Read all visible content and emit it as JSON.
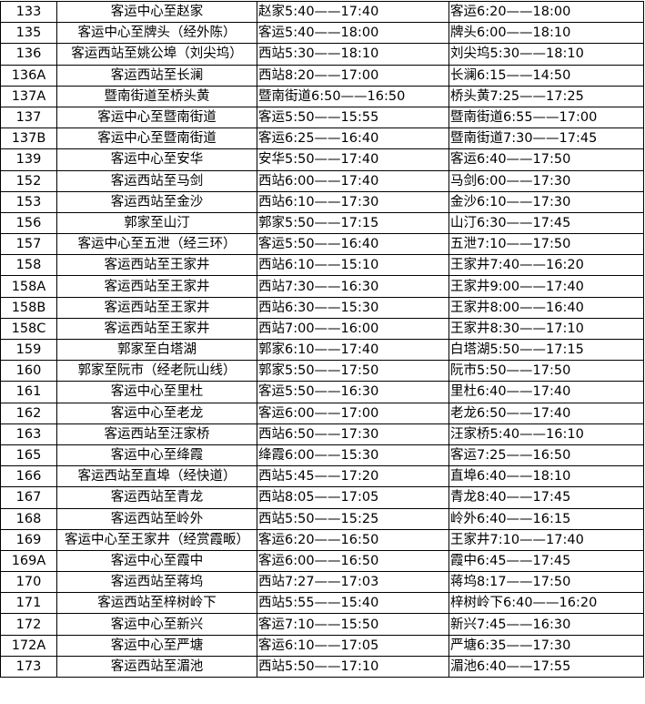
{
  "rows": [
    {
      "route": "133",
      "line": "客运中心至赵家",
      "first": "赵家5:40——17:40",
      "second": "客运6:20——18:00"
    },
    {
      "route": "135",
      "line": "客运中心至牌头（经外陈）",
      "first": "客运5:40——18:00",
      "second": "牌头6:00——18:10"
    },
    {
      "route": "136",
      "line": "客运西站至姚公埠（刘尖坞）",
      "first": "西站5:30——18:10",
      "second": "刘尖坞5:30——18:10"
    },
    {
      "route": "136A",
      "line": "客运西站至长澜",
      "first": "西站8:20——17:00",
      "second": "长澜6:15——14:50"
    },
    {
      "route": "137A",
      "line": "暨南街道至桥头黄",
      "first": "暨南街道6:50——16:50",
      "second": "桥头黄7:25——17:25"
    },
    {
      "route": "137",
      "line": "客运中心至暨南街道",
      "first": "客运5:50——15:55",
      "second": "暨南街道6:55——17:00"
    },
    {
      "route": "137B",
      "line": "客运中心至暨南街道",
      "first": "客运6:25——16:40",
      "second": "暨南街道7:30——17:45"
    },
    {
      "route": "139",
      "line": "客运中心至安华",
      "first": "安华5:50——17:40",
      "second": "客运6:40——17:50"
    },
    {
      "route": "152",
      "line": "客运西站至马剑",
      "first": "西站6:00——17:40",
      "second": "马剑6:00——17:30"
    },
    {
      "route": "153",
      "line": "客运西站至金沙",
      "first": "西站6:10——17:30",
      "second": "金沙6:10——17:30"
    },
    {
      "route": "156",
      "line": "郭家至山汀",
      "first": "郭家5:50——17:15",
      "second": "山汀6:30——17:45"
    },
    {
      "route": "157",
      "line": "客运中心至五泄（经三环）",
      "first": "客运5:50——16:40",
      "second": "五泄7:10——17:50"
    },
    {
      "route": "158",
      "line": "客运西站至王家井",
      "first": "西站6:10——15:10",
      "second": "王家井7:40——16:20"
    },
    {
      "route": "158A",
      "line": "客运西站至王家井",
      "first": "西站7:30——16:30",
      "second": "王家井9:00——17:40"
    },
    {
      "route": "158B",
      "line": "客运西站至王家井",
      "first": "西站6:30——15:30",
      "second": "王家井8:00——16:40"
    },
    {
      "route": "158C",
      "line": "客运西站至王家井",
      "first": "西站7:00——16:00",
      "second": "王家井8:30——17:10"
    },
    {
      "route": "159",
      "line": "郭家至白塔湖",
      "first": "郭家6:10——17:40",
      "second": "白塔湖5:50——17:15"
    },
    {
      "route": "160",
      "line": "郭家至阮市（经老阮山线）",
      "first": "郭家5:50——17:50",
      "second": "阮市5:50——17:50"
    },
    {
      "route": "161",
      "line": "客运中心至里杜",
      "first": "客运5:50——16:30",
      "second": "里杜6:40——17:40"
    },
    {
      "route": "162",
      "line": "客运中心至老龙",
      "first": "客运6:00——17:00",
      "second": "老龙6:50——17:40"
    },
    {
      "route": "163",
      "line": "客运西站至汪家桥",
      "first": "西站6:50——17:30",
      "second": "汪家桥5:40——16:10"
    },
    {
      "route": "165",
      "line": "客运中心至绛霞",
      "first": "绛霞6:00——15:30",
      "second": "客运7:25——16:50"
    },
    {
      "route": "166",
      "line": "客运西站至直埠（经快道）",
      "first": "西站5:45——17:20",
      "second": "直埠6:40——18:10"
    },
    {
      "route": "167",
      "line": "客运西站至青龙",
      "first": "西站8:05——17:05",
      "second": "青龙8:40——17:45"
    },
    {
      "route": "168",
      "line": "客运西站至岭外",
      "first": "西站5:50——15:25",
      "second": "岭外6:40——16:15"
    },
    {
      "route": "169",
      "line": "客运中心至王家井（经赏霞畈）",
      "first": "客运6:20——16:50",
      "second": "王家井7:10——17:40"
    },
    {
      "route": "169A",
      "line": "客运中心至霞中",
      "first": "客运6:00——16:50",
      "second": "霞中6:45——17:45"
    },
    {
      "route": "170",
      "line": "客运西站至蒋坞",
      "first": "西站7:27——17:03",
      "second": "蒋坞8:17——17:50"
    },
    {
      "route": "171",
      "line": "客运西站至梓树岭下",
      "first": "西站5:55——15:40",
      "second": "梓树岭下6:40——16:20"
    },
    {
      "route": "172",
      "line": "客运中心至新兴",
      "first": "客运7:10——15:50",
      "second": "新兴7:45——16:30"
    },
    {
      "route": "172A",
      "line": "客运中心至严塘",
      "first": "客运6:10——17:05",
      "second": "严塘6:35——17:30"
    },
    {
      "route": "173",
      "line": "客运西站至湄池",
      "first": "西站5:50——17:10",
      "second": "湄池6:40——17:55"
    }
  ]
}
